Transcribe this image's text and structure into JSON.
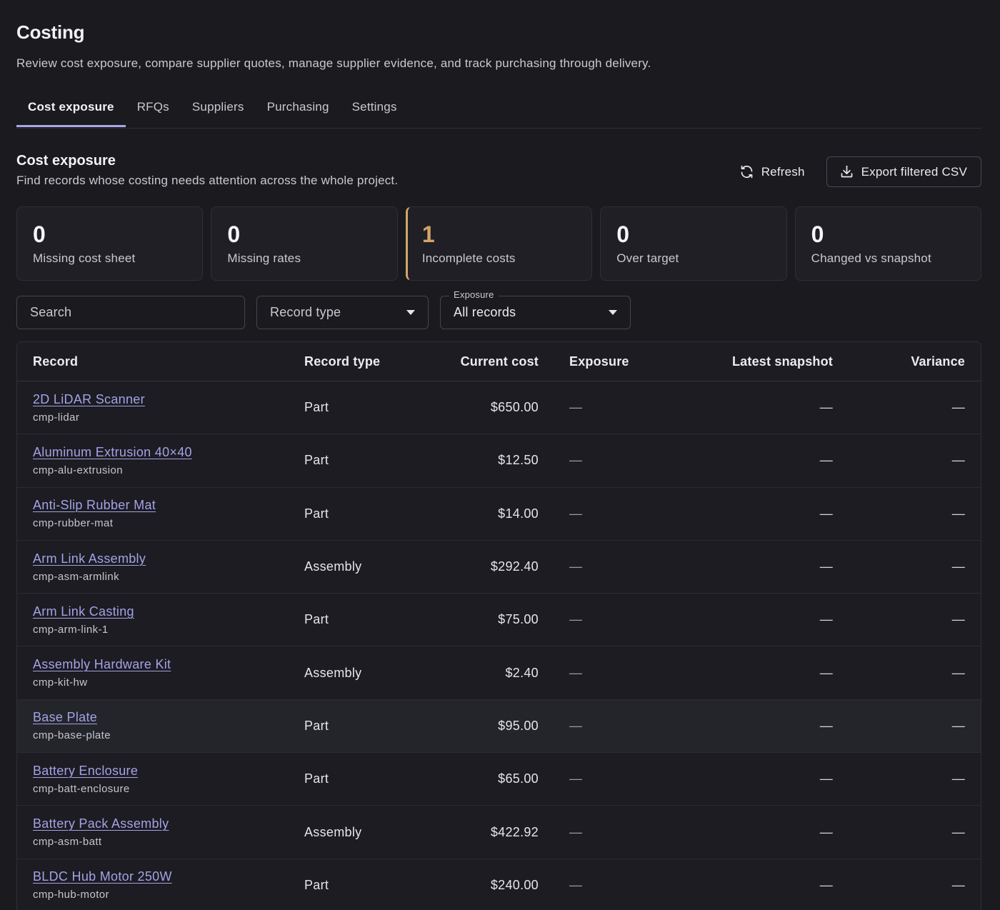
{
  "page": {
    "title": "Costing",
    "subtitle": "Review cost exposure, compare supplier quotes, manage supplier evidence, and track purchasing through delivery."
  },
  "tabs": [
    {
      "label": "Cost exposure",
      "active": true
    },
    {
      "label": "RFQs",
      "active": false
    },
    {
      "label": "Suppliers",
      "active": false
    },
    {
      "label": "Purchasing",
      "active": false
    },
    {
      "label": "Settings",
      "active": false
    }
  ],
  "section": {
    "title": "Cost exposure",
    "description": "Find records whose costing needs attention across the whole project.",
    "refresh_label": "Refresh",
    "export_label": "Export filtered CSV"
  },
  "stats": [
    {
      "value": "0",
      "label": "Missing cost sheet",
      "highlight": false
    },
    {
      "value": "0",
      "label": "Missing rates",
      "highlight": false
    },
    {
      "value": "1",
      "label": "Incomplete costs",
      "highlight": true,
      "color": "#d4a469"
    },
    {
      "value": "0",
      "label": "Over target",
      "highlight": false
    },
    {
      "value": "0",
      "label": "Changed vs snapshot",
      "highlight": false
    }
  ],
  "filters": {
    "search_placeholder": "Search",
    "record_type_placeholder": "Record type",
    "exposure_label": "Exposure",
    "exposure_value": "All records"
  },
  "table": {
    "columns": [
      "Record",
      "Record type",
      "Current cost",
      "Exposure",
      "Latest snapshot",
      "Variance"
    ],
    "rows": [
      {
        "name": "2D LiDAR Scanner",
        "id": "cmp-lidar",
        "type": "Part",
        "cost": "$650.00",
        "exposure": "—",
        "snapshot": "—",
        "variance": "—"
      },
      {
        "name": "Aluminum Extrusion 40×40",
        "id": "cmp-alu-extrusion",
        "type": "Part",
        "cost": "$12.50",
        "exposure": "—",
        "snapshot": "—",
        "variance": "—"
      },
      {
        "name": "Anti-Slip Rubber Mat",
        "id": "cmp-rubber-mat",
        "type": "Part",
        "cost": "$14.00",
        "exposure": "—",
        "snapshot": "—",
        "variance": "—"
      },
      {
        "name": "Arm Link Assembly",
        "id": "cmp-asm-armlink",
        "type": "Assembly",
        "cost": "$292.40",
        "exposure": "—",
        "snapshot": "—",
        "variance": "—"
      },
      {
        "name": "Arm Link Casting",
        "id": "cmp-arm-link-1",
        "type": "Part",
        "cost": "$75.00",
        "exposure": "—",
        "snapshot": "—",
        "variance": "—"
      },
      {
        "name": "Assembly Hardware Kit",
        "id": "cmp-kit-hw",
        "type": "Assembly",
        "cost": "$2.40",
        "exposure": "—",
        "snapshot": "—",
        "variance": "—"
      },
      {
        "name": "Base Plate",
        "id": "cmp-base-plate",
        "type": "Part",
        "cost": "$95.00",
        "exposure": "—",
        "snapshot": "—",
        "variance": "—"
      },
      {
        "name": "Battery Enclosure",
        "id": "cmp-batt-enclosure",
        "type": "Part",
        "cost": "$65.00",
        "exposure": "—",
        "snapshot": "—",
        "variance": "—"
      },
      {
        "name": "Battery Pack Assembly",
        "id": "cmp-asm-batt",
        "type": "Assembly",
        "cost": "$422.92",
        "exposure": "—",
        "snapshot": "—",
        "variance": "—"
      },
      {
        "name": "BLDC Hub Motor 250W",
        "id": "cmp-hub-motor",
        "type": "Part",
        "cost": "$240.00",
        "exposure": "—",
        "snapshot": "—",
        "variance": "—"
      }
    ]
  }
}
